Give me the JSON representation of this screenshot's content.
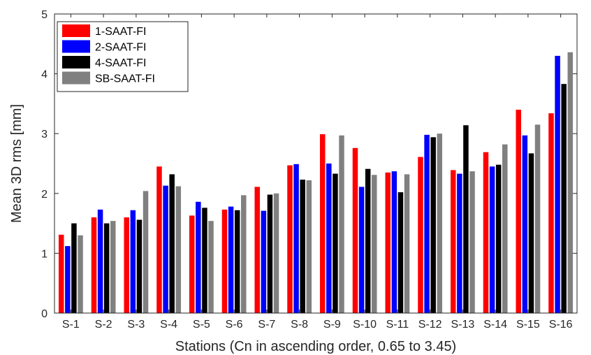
{
  "chart_data": {
    "type": "bar",
    "xlabel": "Stations (Cn in ascending order, 0.65 to 3.45)",
    "ylabel": "Mean 3D rms [mm]",
    "ylim": [
      0,
      5
    ],
    "yticks": [
      "0",
      "1",
      "2",
      "3",
      "4",
      "5"
    ],
    "grid": false,
    "legend_position": "top-left",
    "categories": [
      "S-1",
      "S-2",
      "S-3",
      "S-4",
      "S-5",
      "S-6",
      "S-7",
      "S-8",
      "S-9",
      "S-10",
      "S-11",
      "S-12",
      "S-13",
      "S-14",
      "S-15",
      "S-16"
    ],
    "series": [
      {
        "name": "1-SAAT-FI",
        "color": "#ff0000",
        "values": [
          1.31,
          1.6,
          1.6,
          2.45,
          1.63,
          1.73,
          2.11,
          2.47,
          2.99,
          2.76,
          2.35,
          2.61,
          2.39,
          2.69,
          3.4,
          3.34
        ]
      },
      {
        "name": "2-SAAT-FI",
        "color": "#0000ff",
        "values": [
          1.12,
          1.73,
          1.72,
          2.13,
          1.86,
          1.78,
          1.71,
          2.49,
          2.5,
          2.11,
          2.37,
          2.98,
          2.33,
          2.45,
          2.97,
          4.3
        ]
      },
      {
        "name": "4-SAAT-FI",
        "color": "#000000",
        "values": [
          1.5,
          1.5,
          1.56,
          2.32,
          1.76,
          1.72,
          1.98,
          2.23,
          2.33,
          2.41,
          2.02,
          2.94,
          3.14,
          2.48,
          2.67,
          3.83
        ]
      },
      {
        "name": "SB-SAAT-FI",
        "color": "#808080",
        "values": [
          1.3,
          1.54,
          2.04,
          2.12,
          1.54,
          1.97,
          2.0,
          2.22,
          2.97,
          2.31,
          2.32,
          3.0,
          2.37,
          2.82,
          3.15,
          4.36
        ]
      }
    ]
  }
}
